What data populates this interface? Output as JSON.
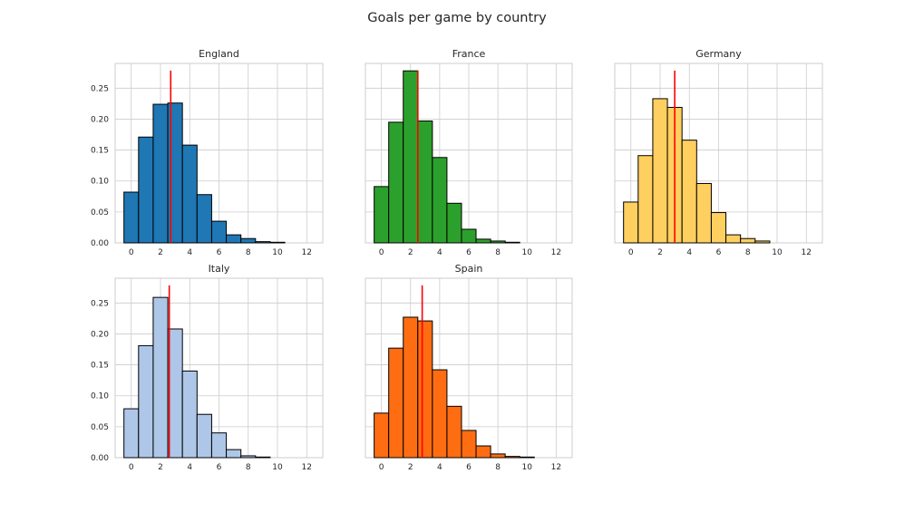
{
  "figure": {
    "title": "Goals per game by country"
  },
  "chart_data": [
    {
      "type": "bar",
      "title": "England",
      "color": "#1f77b4",
      "bin_edges": [
        -0.5,
        0.5,
        1.5,
        2.5,
        3.5,
        4.5,
        5.5,
        6.5,
        7.5,
        8.5,
        9.5,
        10.5
      ],
      "values": [
        0.082,
        0.171,
        0.224,
        0.226,
        0.158,
        0.078,
        0.035,
        0.013,
        0.007,
        0.002,
        0.001
      ],
      "mean_line": 2.7,
      "xlim": [
        -1.1,
        13.1
      ],
      "ylim": [
        0,
        0.29
      ],
      "xticks": [
        0,
        2,
        4,
        6,
        8,
        10,
        12
      ],
      "yticks": [
        0.0,
        0.05,
        0.1,
        0.15,
        0.2,
        0.25
      ],
      "ytick_labels": [
        "0.00",
        "0.05",
        "0.10",
        "0.15",
        "0.20",
        "0.25"
      ],
      "show_yticks": true,
      "grid": true
    },
    {
      "type": "bar",
      "title": "France",
      "color": "#2ca02c",
      "bin_edges": [
        -0.5,
        0.5,
        1.5,
        2.5,
        3.5,
        4.5,
        5.5,
        6.5,
        7.5,
        8.5,
        9.5
      ],
      "values": [
        0.091,
        0.195,
        0.278,
        0.197,
        0.138,
        0.064,
        0.022,
        0.006,
        0.003,
        0.001
      ],
      "mean_line": 2.5,
      "xlim": [
        -1.1,
        13.1
      ],
      "ylim": [
        0,
        0.29
      ],
      "xticks": [
        0,
        2,
        4,
        6,
        8,
        10,
        12
      ],
      "yticks": [
        0.0,
        0.05,
        0.1,
        0.15,
        0.2,
        0.25
      ],
      "ytick_labels": [
        "0.00",
        "0.05",
        "0.10",
        "0.15",
        "0.20",
        "0.25"
      ],
      "show_yticks": false,
      "grid": true
    },
    {
      "type": "bar",
      "title": "Germany",
      "color": "#ffcf5f",
      "bin_edges": [
        -0.5,
        0.5,
        1.5,
        2.5,
        3.5,
        4.5,
        5.5,
        6.5,
        7.5,
        8.5,
        9.5
      ],
      "values": [
        0.066,
        0.141,
        0.233,
        0.219,
        0.166,
        0.096,
        0.049,
        0.013,
        0.007,
        0.003
      ],
      "mean_line": 3.0,
      "xlim": [
        -1.1,
        13.1
      ],
      "ylim": [
        0,
        0.29
      ],
      "xticks": [
        0,
        2,
        4,
        6,
        8,
        10,
        12
      ],
      "yticks": [
        0.0,
        0.05,
        0.1,
        0.15,
        0.2,
        0.25
      ],
      "ytick_labels": [
        "0.00",
        "0.05",
        "0.10",
        "0.15",
        "0.20",
        "0.25"
      ],
      "show_yticks": false,
      "grid": true
    },
    {
      "type": "bar",
      "title": "Italy",
      "color": "#aec7e8",
      "bin_edges": [
        -0.5,
        0.5,
        1.5,
        2.5,
        3.5,
        4.5,
        5.5,
        6.5,
        7.5,
        8.5,
        9.5
      ],
      "values": [
        0.079,
        0.181,
        0.259,
        0.208,
        0.14,
        0.07,
        0.04,
        0.013,
        0.003,
        0.001
      ],
      "mean_line": 2.6,
      "xlim": [
        -1.1,
        13.1
      ],
      "ylim": [
        0,
        0.29
      ],
      "xticks": [
        0,
        2,
        4,
        6,
        8,
        10,
        12
      ],
      "yticks": [
        0.0,
        0.05,
        0.1,
        0.15,
        0.2,
        0.25
      ],
      "ytick_labels": [
        "0.00",
        "0.05",
        "0.10",
        "0.15",
        "0.20",
        "0.25"
      ],
      "show_yticks": true,
      "grid": true
    },
    {
      "type": "bar",
      "title": "Spain",
      "color": "#ff6d12",
      "bin_edges": [
        -0.5,
        0.5,
        1.5,
        2.5,
        3.5,
        4.5,
        5.5,
        6.5,
        7.5,
        8.5,
        9.5,
        10.5
      ],
      "values": [
        0.072,
        0.177,
        0.227,
        0.221,
        0.142,
        0.083,
        0.044,
        0.019,
        0.006,
        0.002,
        0.001
      ],
      "mean_line": 2.8,
      "xlim": [
        -1.1,
        13.1
      ],
      "ylim": [
        0,
        0.29
      ],
      "xticks": [
        0,
        2,
        4,
        6,
        8,
        10,
        12
      ],
      "yticks": [
        0.0,
        0.05,
        0.1,
        0.15,
        0.2,
        0.25
      ],
      "ytick_labels": [
        "0.00",
        "0.05",
        "0.10",
        "0.15",
        "0.20",
        "0.25"
      ],
      "show_yticks": false,
      "grid": true
    }
  ]
}
